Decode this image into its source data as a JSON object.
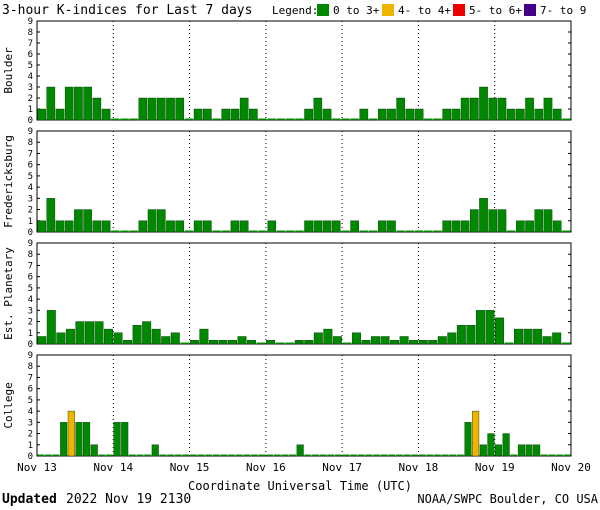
{
  "header": {
    "title": "3-hour K-indices for Last 7 days",
    "legend_label": "Legend:"
  },
  "legend": [
    {
      "label": "0 to 3+",
      "color": "#008800"
    },
    {
      "label": "4- to 4+",
      "color": "#f0b400"
    },
    {
      "label": "5- to 6+",
      "color": "#ee0000"
    },
    {
      "label": "7- to 9",
      "color": "#440088"
    }
  ],
  "footer": {
    "updated_label": "Updated",
    "updated_value": "2022 Nov 19 2130",
    "credit": "NOAA/SWPC Boulder, CO USA"
  },
  "chart_data": {
    "type": "bar",
    "xlabel": "Coordinate Universal Time (UTC)",
    "x_tick_labels": [
      "Nov 13",
      "Nov 14",
      "Nov 15",
      "Nov 16",
      "Nov 17",
      "Nov 18",
      "Nov 19",
      "Nov 20"
    ],
    "y_ticks": [
      0,
      1,
      2,
      3,
      4,
      5,
      6,
      7,
      8,
      9
    ],
    "ylim": [
      0,
      9
    ],
    "color_thresholds": [
      {
        "min": 0,
        "max": 3.99,
        "color": "#008800"
      },
      {
        "min": 4,
        "max": 4.99,
        "color": "#f0b400"
      },
      {
        "min": 5,
        "max": 6.99,
        "color": "#ee0000"
      },
      {
        "min": 7,
        "max": 9,
        "color": "#440088"
      }
    ],
    "series": [
      {
        "name": "Boulder",
        "values": [
          1,
          3,
          1,
          3,
          3,
          3,
          2,
          1,
          0,
          0,
          0,
          2,
          2,
          2,
          2,
          2,
          0,
          1,
          1,
          0,
          1,
          1,
          2,
          1,
          0,
          0,
          0,
          0,
          0,
          1,
          2,
          1,
          0,
          0,
          0,
          1,
          0,
          1,
          1,
          2,
          1,
          1,
          0,
          0,
          1,
          1,
          2,
          2,
          3,
          2,
          2,
          1,
          1,
          2,
          1,
          2,
          1,
          0
        ]
      },
      {
        "name": "Fredericksburg",
        "values": [
          1,
          3,
          1,
          1,
          2,
          2,
          1,
          1,
          0,
          0,
          0,
          1,
          2,
          2,
          1,
          1,
          0,
          1,
          1,
          0,
          0,
          1,
          1,
          0,
          0,
          1,
          0,
          0,
          0,
          1,
          1,
          1,
          1,
          0,
          1,
          0,
          0,
          1,
          1,
          0,
          0,
          0,
          0,
          0,
          1,
          1,
          1,
          2,
          3,
          2,
          2,
          0,
          1,
          1,
          2,
          2,
          1,
          0
        ]
      },
      {
        "name": "Est. Planetary",
        "values": [
          0.67,
          3,
          1,
          1.33,
          2,
          2,
          2,
          1.33,
          1,
          0.33,
          1.67,
          2,
          1.33,
          0.67,
          1,
          0,
          0.33,
          1.33,
          0.33,
          0.33,
          0.33,
          0.67,
          0.33,
          0,
          0.33,
          0,
          0,
          0.33,
          0.33,
          1,
          1.33,
          0.67,
          0,
          1,
          0.33,
          0.67,
          0.67,
          0.33,
          0.67,
          0.33,
          0.33,
          0.33,
          0.67,
          1,
          1.67,
          1.67,
          3,
          3,
          2.33,
          0,
          1.33,
          1.33,
          1.33,
          0.67,
          1,
          0
        ]
      },
      {
        "name": "College",
        "values": [
          0,
          0,
          0,
          3,
          4,
          3,
          3,
          1,
          0,
          0,
          3,
          3,
          0,
          0,
          0,
          1,
          0,
          0,
          0,
          0,
          0,
          0,
          0,
          0,
          0,
          0,
          0,
          0,
          0,
          0,
          0,
          0,
          0,
          0,
          1,
          0,
          0,
          0,
          0,
          0,
          0,
          0,
          0,
          0,
          0,
          0,
          0,
          0,
          0,
          0,
          0,
          0,
          0,
          0,
          0,
          0,
          3,
          4,
          1,
          2,
          1,
          2,
          0,
          1,
          1,
          1,
          0,
          0,
          0,
          0
        ]
      }
    ]
  }
}
